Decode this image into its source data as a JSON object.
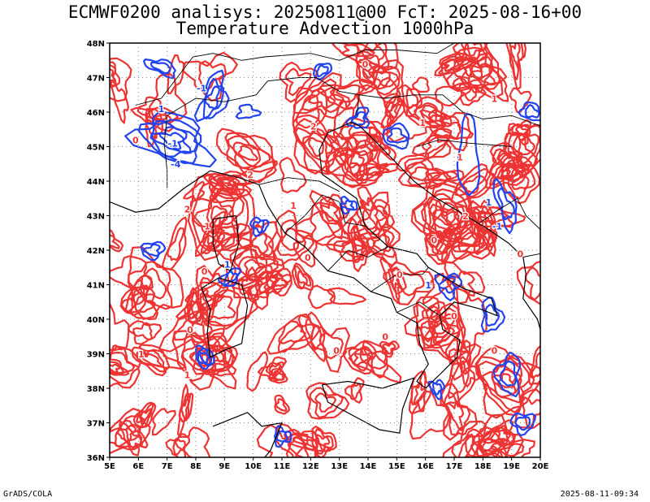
{
  "title_line1": "ECMWF0200 analisys: 20250811@00 FcT: 2025-08-16+00",
  "title_line2": "Temperature Advection 1000hPa",
  "footer_left": "GrADS/COLA",
  "footer_right": "2025-08-11-09:34",
  "colors": {
    "positive": "#ee3333",
    "negative": "#2244ee",
    "coast": "#000000",
    "grid": "#888888"
  },
  "map": {
    "lon_range": [
      5,
      20
    ],
    "lat_range": [
      36,
      48
    ],
    "lon_ticks": [
      "5E",
      "6E",
      "7E",
      "8E",
      "9E",
      "10E",
      "11E",
      "12E",
      "13E",
      "14E",
      "15E",
      "16E",
      "17E",
      "18E",
      "19E",
      "20E"
    ],
    "lat_ticks": [
      "36N",
      "37N",
      "38N",
      "39N",
      "40N",
      "41N",
      "42N",
      "43N",
      "44N",
      "45N",
      "46N",
      "47N",
      "48N"
    ],
    "contour_labels": [
      {
        "text": "1",
        "lon": 6.8,
        "lat": 46.0,
        "sign": "neg"
      },
      {
        "text": "-1",
        "lon": 8.2,
        "lat": 46.6,
        "sign": "neg"
      },
      {
        "text": "-1",
        "lon": 7.2,
        "lat": 45.0,
        "sign": "neg"
      },
      {
        "text": "-4",
        "lon": 7.3,
        "lat": 44.4,
        "sign": "neg"
      },
      {
        "text": "0",
        "lon": 5.9,
        "lat": 45.1,
        "sign": "pos"
      },
      {
        "text": "2",
        "lon": 9.9,
        "lat": 44.1,
        "sign": "pos"
      },
      {
        "text": "2",
        "lon": 7.7,
        "lat": 43.1,
        "sign": "pos"
      },
      {
        "text": "1",
        "lon": 8.4,
        "lat": 42.6,
        "sign": "pos"
      },
      {
        "text": "0",
        "lon": 8.3,
        "lat": 41.3,
        "sign": "pos"
      },
      {
        "text": "1",
        "lon": 9.1,
        "lat": 41.5,
        "sign": "neg"
      },
      {
        "text": "1",
        "lon": 11.4,
        "lat": 43.2,
        "sign": "pos"
      },
      {
        "text": "0",
        "lon": 11.9,
        "lat": 41.7,
        "sign": "pos"
      },
      {
        "text": "2",
        "lon": 12.1,
        "lat": 45.5,
        "sign": "pos"
      },
      {
        "text": "0",
        "lon": 13.9,
        "lat": 47.3,
        "sign": "pos"
      },
      {
        "text": "1",
        "lon": 15.9,
        "lat": 45.6,
        "sign": "pos"
      },
      {
        "text": "1",
        "lon": 17.2,
        "lat": 44.6,
        "sign": "pos"
      },
      {
        "text": "1",
        "lon": 18.2,
        "lat": 43.3,
        "sign": "neg"
      },
      {
        "text": "-1",
        "lon": 18.5,
        "lat": 42.6,
        "sign": "neg"
      },
      {
        "text": "2",
        "lon": 17.4,
        "lat": 42.9,
        "sign": "pos"
      },
      {
        "text": "0",
        "lon": 16.3,
        "lat": 42.2,
        "sign": "pos"
      },
      {
        "text": "0",
        "lon": 15.1,
        "lat": 41.2,
        "sign": "pos"
      },
      {
        "text": "1",
        "lon": 16.1,
        "lat": 40.9,
        "sign": "neg"
      },
      {
        "text": "0",
        "lon": 17.0,
        "lat": 40.0,
        "sign": "pos"
      },
      {
        "text": "0",
        "lon": 14.6,
        "lat": 39.4,
        "sign": "pos"
      },
      {
        "text": "0",
        "lon": 12.9,
        "lat": 39.0,
        "sign": "pos"
      },
      {
        "text": "0",
        "lon": 7.8,
        "lat": 39.6,
        "sign": "pos"
      },
      {
        "text": "1",
        "lon": 6.1,
        "lat": 38.9,
        "sign": "pos"
      },
      {
        "text": "1",
        "lon": 7.7,
        "lat": 38.3,
        "sign": "pos"
      },
      {
        "text": "0",
        "lon": 18.4,
        "lat": 39.0,
        "sign": "pos"
      },
      {
        "text": "1",
        "lon": 18.4,
        "lat": 46.3,
        "sign": "pos"
      },
      {
        "text": "0",
        "lon": 19.3,
        "lat": 41.8,
        "sign": "pos"
      }
    ]
  }
}
